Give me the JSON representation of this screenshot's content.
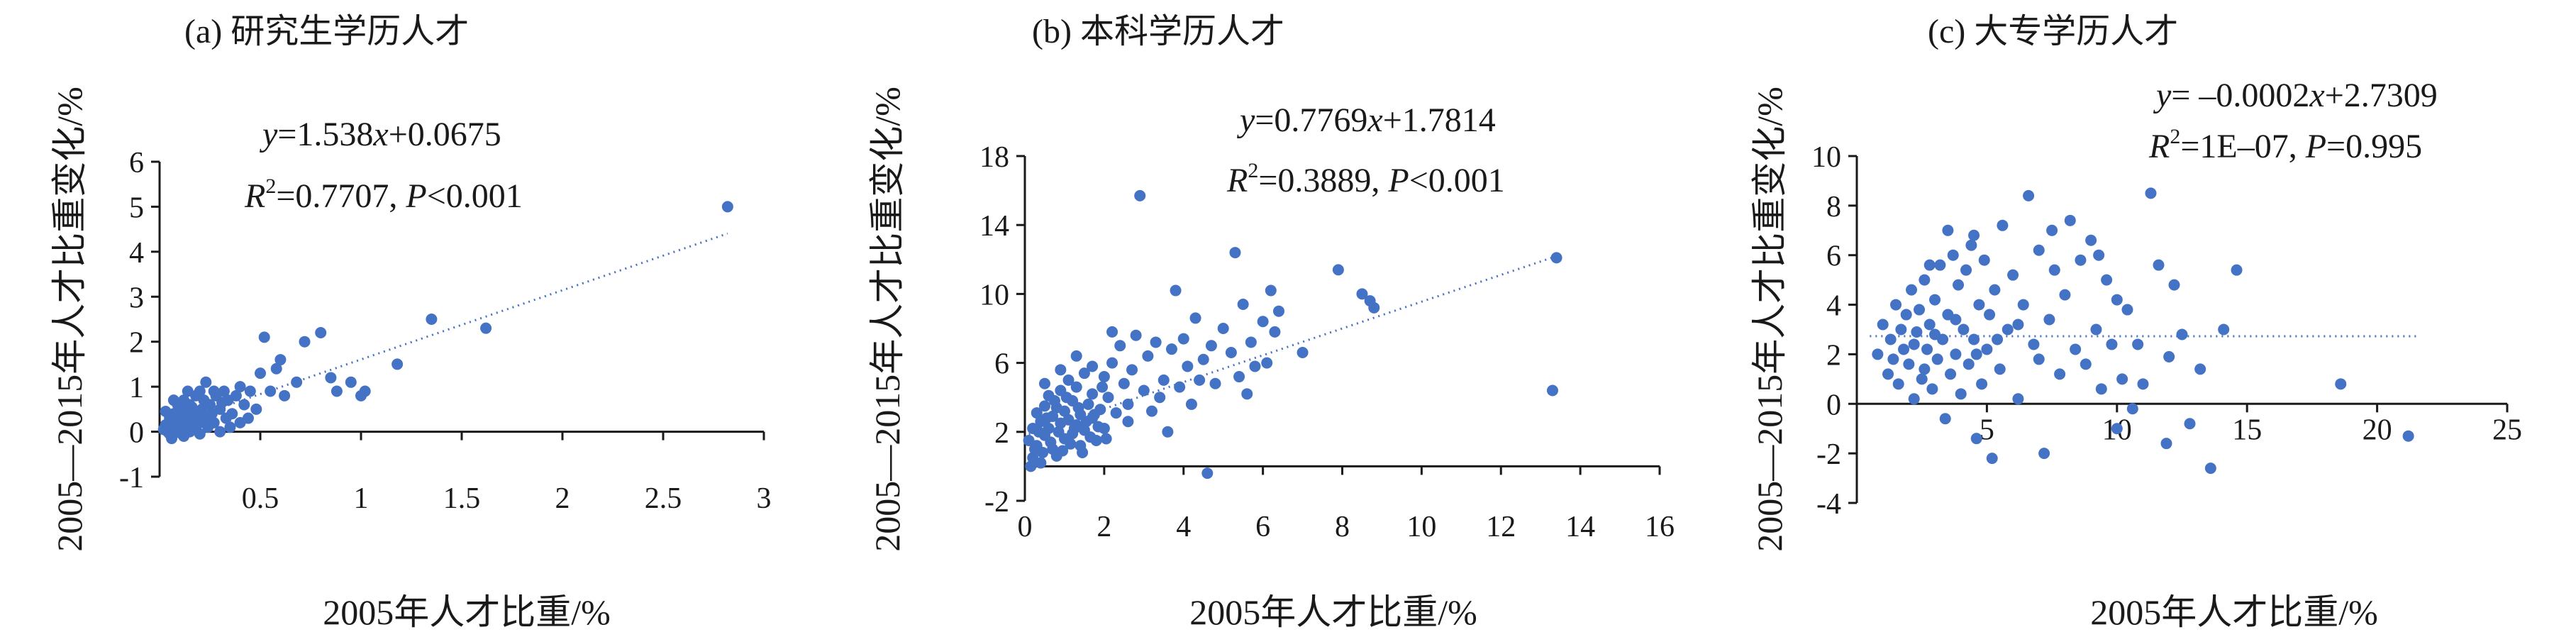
{
  "chart_data": [
    {
      "type": "scatter",
      "title": "(a) 研究生学历人才",
      "xlabel": "2005年人才比重/%",
      "ylabel": "2005—2015年人才比重变化/%",
      "xlim": [
        0,
        3
      ],
      "ylim": [
        -1,
        6
      ],
      "xticks": [
        0.5,
        1,
        1.5,
        2,
        2.5,
        3
      ],
      "yticks": [
        -1,
        0,
        1,
        2,
        3,
        4,
        5,
        6
      ],
      "grid": false,
      "trendline": {
        "slope": 1.538,
        "intercept": 0.0675,
        "x_range": [
          0.02,
          2.82
        ]
      },
      "equation_parts": [
        "y",
        "=1.538",
        "x",
        "+0.0675"
      ],
      "stats_parts": [
        "R",
        "2",
        "=0.7707, ",
        "P",
        "<0.001"
      ],
      "marker_color": "#4472c4",
      "points": [
        [
          0.02,
          0.05
        ],
        [
          0.03,
          0.15
        ],
        [
          0.04,
          0.0
        ],
        [
          0.05,
          0.3
        ],
        [
          0.05,
          -0.05
        ],
        [
          0.06,
          0.2
        ],
        [
          0.07,
          0.1
        ],
        [
          0.07,
          0.4
        ],
        [
          0.08,
          0.0
        ],
        [
          0.08,
          0.25
        ],
        [
          0.09,
          0.1
        ],
        [
          0.1,
          0.5
        ],
        [
          0.1,
          0.05
        ],
        [
          0.11,
          0.3
        ],
        [
          0.12,
          -0.1
        ],
        [
          0.12,
          0.15
        ],
        [
          0.13,
          0.4
        ],
        [
          0.14,
          0.2
        ],
        [
          0.15,
          0.6
        ],
        [
          0.15,
          0.0
        ],
        [
          0.16,
          0.3
        ],
        [
          0.17,
          0.1
        ],
        [
          0.18,
          0.8
        ],
        [
          0.19,
          0.4
        ],
        [
          0.2,
          0.2
        ],
        [
          0.2,
          -0.05
        ],
        [
          0.21,
          0.5
        ],
        [
          0.22,
          0.3
        ],
        [
          0.23,
          1.1
        ],
        [
          0.24,
          0.1
        ],
        [
          0.25,
          0.6
        ],
        [
          0.26,
          0.4
        ],
        [
          0.27,
          0.2
        ],
        [
          0.28,
          0.8
        ],
        [
          0.3,
          0.5
        ],
        [
          0.3,
          0.0
        ],
        [
          0.32,
          0.9
        ],
        [
          0.33,
          0.3
        ],
        [
          0.34,
          0.7
        ],
        [
          0.36,
          0.4
        ],
        [
          0.38,
          0.8
        ],
        [
          0.4,
          1.0
        ],
        [
          0.4,
          0.2
        ],
        [
          0.42,
          0.6
        ],
        [
          0.45,
          0.9
        ],
        [
          0.48,
          0.5
        ],
        [
          0.5,
          1.3
        ],
        [
          0.52,
          2.1
        ],
        [
          0.55,
          0.9
        ],
        [
          0.58,
          1.4
        ],
        [
          0.6,
          1.6
        ],
        [
          0.62,
          0.8
        ],
        [
          0.68,
          1.1
        ],
        [
          0.72,
          2.0
        ],
        [
          0.8,
          2.2
        ],
        [
          0.85,
          1.2
        ],
        [
          0.88,
          0.9
        ],
        [
          0.95,
          1.1
        ],
        [
          1.0,
          0.8
        ],
        [
          1.02,
          0.9
        ],
        [
          1.18,
          1.5
        ],
        [
          1.35,
          2.5
        ],
        [
          1.62,
          2.3
        ],
        [
          2.82,
          5.0
        ],
        [
          0.06,
          -0.15
        ],
        [
          0.09,
          0.6
        ],
        [
          0.14,
          0.9
        ],
        [
          0.18,
          0.05
        ],
        [
          0.22,
          0.7
        ],
        [
          0.27,
          0.9
        ],
        [
          0.12,
          0.7
        ],
        [
          0.2,
          0.9
        ],
        [
          0.35,
          0.1
        ],
        [
          0.03,
          0.45
        ],
        [
          0.07,
          0.7
        ],
        [
          0.11,
          -0.05
        ],
        [
          0.16,
          0.55
        ],
        [
          0.25,
          0.35
        ],
        [
          0.31,
          0.65
        ],
        [
          0.44,
          0.3
        ]
      ]
    },
    {
      "type": "scatter",
      "title": "(b) 本科学历人才",
      "xlabel": "2005年人才比重/%",
      "ylabel": "2005—2015年人才比重变化/%",
      "xlim": [
        0,
        16
      ],
      "ylim": [
        -2,
        18
      ],
      "xticks": [
        0,
        2,
        4,
        6,
        8,
        10,
        12,
        14,
        16
      ],
      "yticks": [
        -2,
        2,
        6,
        10,
        14,
        18
      ],
      "grid": false,
      "trendline": {
        "slope": 0.7769,
        "intercept": 1.7814,
        "x_range": [
          0.1,
          13.5
        ]
      },
      "equation_parts": [
        "y",
        "=0.7769",
        "x",
        "+1.7814"
      ],
      "stats_parts": [
        "R",
        "2",
        "=0.3889, ",
        "P",
        "<0.001"
      ],
      "marker_color": "#4472c4",
      "points": [
        [
          0.1,
          1.5
        ],
        [
          0.2,
          2.2
        ],
        [
          0.2,
          0.5
        ],
        [
          0.3,
          3.1
        ],
        [
          0.3,
          1.2
        ],
        [
          0.4,
          2.6
        ],
        [
          0.4,
          0.2
        ],
        [
          0.5,
          3.5
        ],
        [
          0.5,
          1.8
        ],
        [
          0.6,
          2.2
        ],
        [
          0.6,
          4.1
        ],
        [
          0.7,
          1.0
        ],
        [
          0.7,
          2.9
        ],
        [
          0.8,
          3.4
        ],
        [
          0.8,
          0.6
        ],
        [
          0.9,
          2.5
        ],
        [
          0.9,
          4.4
        ],
        [
          1.0,
          1.6
        ],
        [
          1.0,
          3.2
        ],
        [
          1.1,
          2.7
        ],
        [
          1.1,
          5.0
        ],
        [
          1.2,
          1.9
        ],
        [
          1.2,
          3.8
        ],
        [
          1.3,
          2.4
        ],
        [
          1.3,
          4.6
        ],
        [
          1.4,
          1.2
        ],
        [
          1.4,
          3.0
        ],
        [
          1.5,
          5.4
        ],
        [
          1.5,
          2.1
        ],
        [
          1.6,
          3.6
        ],
        [
          1.7,
          2.8
        ],
        [
          1.7,
          4.2
        ],
        [
          1.8,
          1.5
        ],
        [
          1.9,
          3.3
        ],
        [
          2.0,
          5.2
        ],
        [
          2.0,
          2.2
        ],
        [
          2.1,
          4.0
        ],
        [
          2.2,
          6.0
        ],
        [
          2.3,
          3.1
        ],
        [
          2.4,
          7.0
        ],
        [
          2.5,
          4.8
        ],
        [
          2.6,
          2.6
        ],
        [
          2.7,
          5.6
        ],
        [
          2.8,
          7.6
        ],
        [
          2.9,
          15.7
        ],
        [
          3.0,
          4.4
        ],
        [
          3.1,
          6.4
        ],
        [
          3.2,
          3.2
        ],
        [
          3.3,
          7.2
        ],
        [
          3.5,
          5.0
        ],
        [
          3.6,
          2.0
        ],
        [
          3.7,
          6.8
        ],
        [
          3.8,
          10.2
        ],
        [
          3.9,
          4.6
        ],
        [
          4.0,
          7.4
        ],
        [
          4.1,
          5.8
        ],
        [
          4.2,
          3.6
        ],
        [
          4.3,
          8.6
        ],
        [
          4.5,
          6.2
        ],
        [
          4.6,
          -0.4
        ],
        [
          4.7,
          7.0
        ],
        [
          4.8,
          4.8
        ],
        [
          5.0,
          8.0
        ],
        [
          5.2,
          6.6
        ],
        [
          5.3,
          12.4
        ],
        [
          5.4,
          5.2
        ],
        [
          5.5,
          9.4
        ],
        [
          5.7,
          7.2
        ],
        [
          5.8,
          5.8
        ],
        [
          6.0,
          8.4
        ],
        [
          6.1,
          6.0
        ],
        [
          6.2,
          10.2
        ],
        [
          6.3,
          7.8
        ],
        [
          7.0,
          6.6
        ],
        [
          7.9,
          11.4
        ],
        [
          8.5,
          10.0
        ],
        [
          8.7,
          9.6
        ],
        [
          8.8,
          9.2
        ],
        [
          13.4,
          12.1
        ],
        [
          13.3,
          4.4
        ],
        [
          0.15,
          0.0
        ],
        [
          0.25,
          1.0
        ],
        [
          0.35,
          2.0
        ],
        [
          0.45,
          0.8
        ],
        [
          0.55,
          2.8
        ],
        [
          0.65,
          1.4
        ],
        [
          0.75,
          3.8
        ],
        [
          0.85,
          2.0
        ],
        [
          0.95,
          0.9
        ],
        [
          1.05,
          4.0
        ],
        [
          1.15,
          1.3
        ],
        [
          1.25,
          2.2
        ],
        [
          1.35,
          3.4
        ],
        [
          1.45,
          0.8
        ],
        [
          1.55,
          2.6
        ],
        [
          1.65,
          1.7
        ],
        [
          1.75,
          3.0
        ],
        [
          1.85,
          2.3
        ],
        [
          1.95,
          4.6
        ],
        [
          2.05,
          1.6
        ],
        [
          0.5,
          4.8
        ],
        [
          0.9,
          5.6
        ],
        [
          1.3,
          6.4
        ],
        [
          1.7,
          5.8
        ],
        [
          2.2,
          7.8
        ],
        [
          2.6,
          3.6
        ],
        [
          3.4,
          4.0
        ],
        [
          4.4,
          5.0
        ],
        [
          5.6,
          4.2
        ],
        [
          6.4,
          9.0
        ]
      ]
    },
    {
      "type": "scatter",
      "title": "(c) 大专学历人才",
      "xlabel": "2005年人才比重/%",
      "ylabel": "2005—2015年人才比重变化/%",
      "xlim": [
        0,
        25
      ],
      "ylim": [
        -4,
        10
      ],
      "xticks": [
        5,
        10,
        15,
        20,
        25
      ],
      "yticks": [
        -4,
        -2,
        0,
        2,
        4,
        6,
        8,
        10
      ],
      "grid": false,
      "trendline": {
        "slope": -0.0002,
        "intercept": 2.7309,
        "x_range": [
          0.5,
          21.5
        ]
      },
      "equation_parts": [
        "y",
        "= –0.0002",
        "x",
        "+2.7309"
      ],
      "stats_parts": [
        "R",
        "2",
        "=1E–07, ",
        "P",
        "=0.995"
      ],
      "marker_color": "#4472c4",
      "points": [
        [
          0.8,
          2.0
        ],
        [
          1.0,
          3.2
        ],
        [
          1.2,
          1.2
        ],
        [
          1.3,
          2.6
        ],
        [
          1.5,
          4.0
        ],
        [
          1.6,
          0.8
        ],
        [
          1.8,
          2.2
        ],
        [
          1.9,
          3.6
        ],
        [
          2.0,
          1.6
        ],
        [
          2.1,
          4.6
        ],
        [
          2.2,
          0.2
        ],
        [
          2.3,
          2.9
        ],
        [
          2.4,
          3.8
        ],
        [
          2.5,
          1.0
        ],
        [
          2.6,
          5.0
        ],
        [
          2.7,
          2.2
        ],
        [
          2.8,
          3.2
        ],
        [
          2.9,
          0.6
        ],
        [
          3.0,
          4.2
        ],
        [
          3.1,
          1.8
        ],
        [
          3.2,
          5.6
        ],
        [
          3.3,
          2.6
        ],
        [
          3.4,
          -0.6
        ],
        [
          3.5,
          3.6
        ],
        [
          3.6,
          1.2
        ],
        [
          3.7,
          6.0
        ],
        [
          3.8,
          2.0
        ],
        [
          3.9,
          4.8
        ],
        [
          4.0,
          0.4
        ],
        [
          4.1,
          3.0
        ],
        [
          4.2,
          5.4
        ],
        [
          4.3,
          1.6
        ],
        [
          4.4,
          6.4
        ],
        [
          4.5,
          2.6
        ],
        [
          4.6,
          -1.4
        ],
        [
          4.7,
          4.0
        ],
        [
          4.8,
          0.8
        ],
        [
          4.9,
          5.8
        ],
        [
          5.0,
          2.2
        ],
        [
          5.1,
          3.6
        ],
        [
          5.2,
          -2.2
        ],
        [
          5.3,
          4.6
        ],
        [
          5.5,
          1.4
        ],
        [
          5.6,
          7.2
        ],
        [
          5.8,
          3.0
        ],
        [
          6.0,
          5.2
        ],
        [
          6.2,
          0.2
        ],
        [
          6.4,
          4.0
        ],
        [
          6.6,
          8.4
        ],
        [
          6.8,
          2.4
        ],
        [
          7.0,
          6.2
        ],
        [
          7.2,
          -2.0
        ],
        [
          7.4,
          3.4
        ],
        [
          7.6,
          5.4
        ],
        [
          7.8,
          1.2
        ],
        [
          8.0,
          4.4
        ],
        [
          8.2,
          7.4
        ],
        [
          8.4,
          2.2
        ],
        [
          8.6,
          5.8
        ],
        [
          8.8,
          1.6
        ],
        [
          9.0,
          6.6
        ],
        [
          9.2,
          3.0
        ],
        [
          9.4,
          0.6
        ],
        [
          9.6,
          5.0
        ],
        [
          9.8,
          2.4
        ],
        [
          10.0,
          4.2
        ],
        [
          10.2,
          1.0
        ],
        [
          10.4,
          3.8
        ],
        [
          10.6,
          -0.2
        ],
        [
          10.8,
          2.4
        ],
        [
          11.0,
          0.8
        ],
        [
          11.3,
          8.5
        ],
        [
          11.6,
          5.6
        ],
        [
          11.9,
          -1.6
        ],
        [
          12.2,
          4.8
        ],
        [
          12.5,
          2.8
        ],
        [
          12.8,
          -0.8
        ],
        [
          13.2,
          1.4
        ],
        [
          13.6,
          -2.6
        ],
        [
          14.6,
          5.4
        ],
        [
          18.6,
          0.8
        ],
        [
          21.2,
          -1.3
        ],
        [
          14.1,
          3.0
        ],
        [
          12.0,
          1.9
        ],
        [
          10.0,
          -1.0
        ],
        [
          3.5,
          7.0
        ],
        [
          2.8,
          5.6
        ],
        [
          4.5,
          6.8
        ],
        [
          7.5,
          7.0
        ],
        [
          9.3,
          6.0
        ],
        [
          1.4,
          1.8
        ],
        [
          2.2,
          2.4
        ],
        [
          3.0,
          2.8
        ],
        [
          3.8,
          3.4
        ],
        [
          4.6,
          2.0
        ],
        [
          5.4,
          2.6
        ],
        [
          6.2,
          3.2
        ],
        [
          7.0,
          1.8
        ],
        [
          1.7,
          3.0
        ],
        [
          2.6,
          1.4
        ]
      ]
    }
  ]
}
